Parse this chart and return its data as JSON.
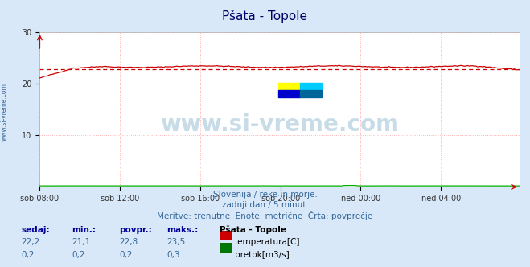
{
  "title": "Pšata - Topole",
  "subtitle_lines": [
    "Slovenija / reke in morje.",
    "zadnji dan / 5 minut.",
    "Meritve: trenutne  Enote: metrične  Črta: povprečje"
  ],
  "bg_color": "#d8e8f8",
  "plot_bg_color": "#ffffff",
  "grid_color": "#ffb0b0",
  "grid_style": ":",
  "x_labels": [
    "sob 08:00",
    "sob 12:00",
    "sob 16:00",
    "sob 20:00",
    "ned 00:00",
    "ned 04:00"
  ],
  "x_ticks": [
    0,
    48,
    96,
    144,
    192,
    240
  ],
  "x_max": 287,
  "y_min": 0,
  "y_max": 30,
  "y_ticks": [
    10,
    20,
    30
  ],
  "temp_color": "#cc0000",
  "flow_color": "#00aa00",
  "avg_line_color": "#cc0000",
  "avg_line_style": "--",
  "avg_temp": 22.8,
  "temp_min": 21.1,
  "temp_max": 23.5,
  "temp_current": 22.2,
  "flow_min": 0.2,
  "flow_max": 0.3,
  "flow_current": 0.2,
  "table_headers": [
    "sedaj:",
    "min.:",
    "povpr.:",
    "maks.:",
    "Pšata - Topole"
  ],
  "table_row1": [
    "22,2",
    "21,1",
    "22,8",
    "23,5",
    "temperatura[C]"
  ],
  "table_row2": [
    "0,2",
    "0,2",
    "0,2",
    "0,3",
    "pretok[m3/s]"
  ],
  "watermark": "www.si-vreme.com",
  "sidebar_text": "www.si-vreme.com",
  "logo_colors": [
    "#ffff00",
    "#00ccff",
    "#0000cc",
    "#006699"
  ],
  "title_color": "#000066",
  "subtitle_color": "#336699",
  "table_header_color": "#000099",
  "table_value_color": "#336699",
  "sidebar_color": "#336699",
  "watermark_color": "#c8dce8"
}
